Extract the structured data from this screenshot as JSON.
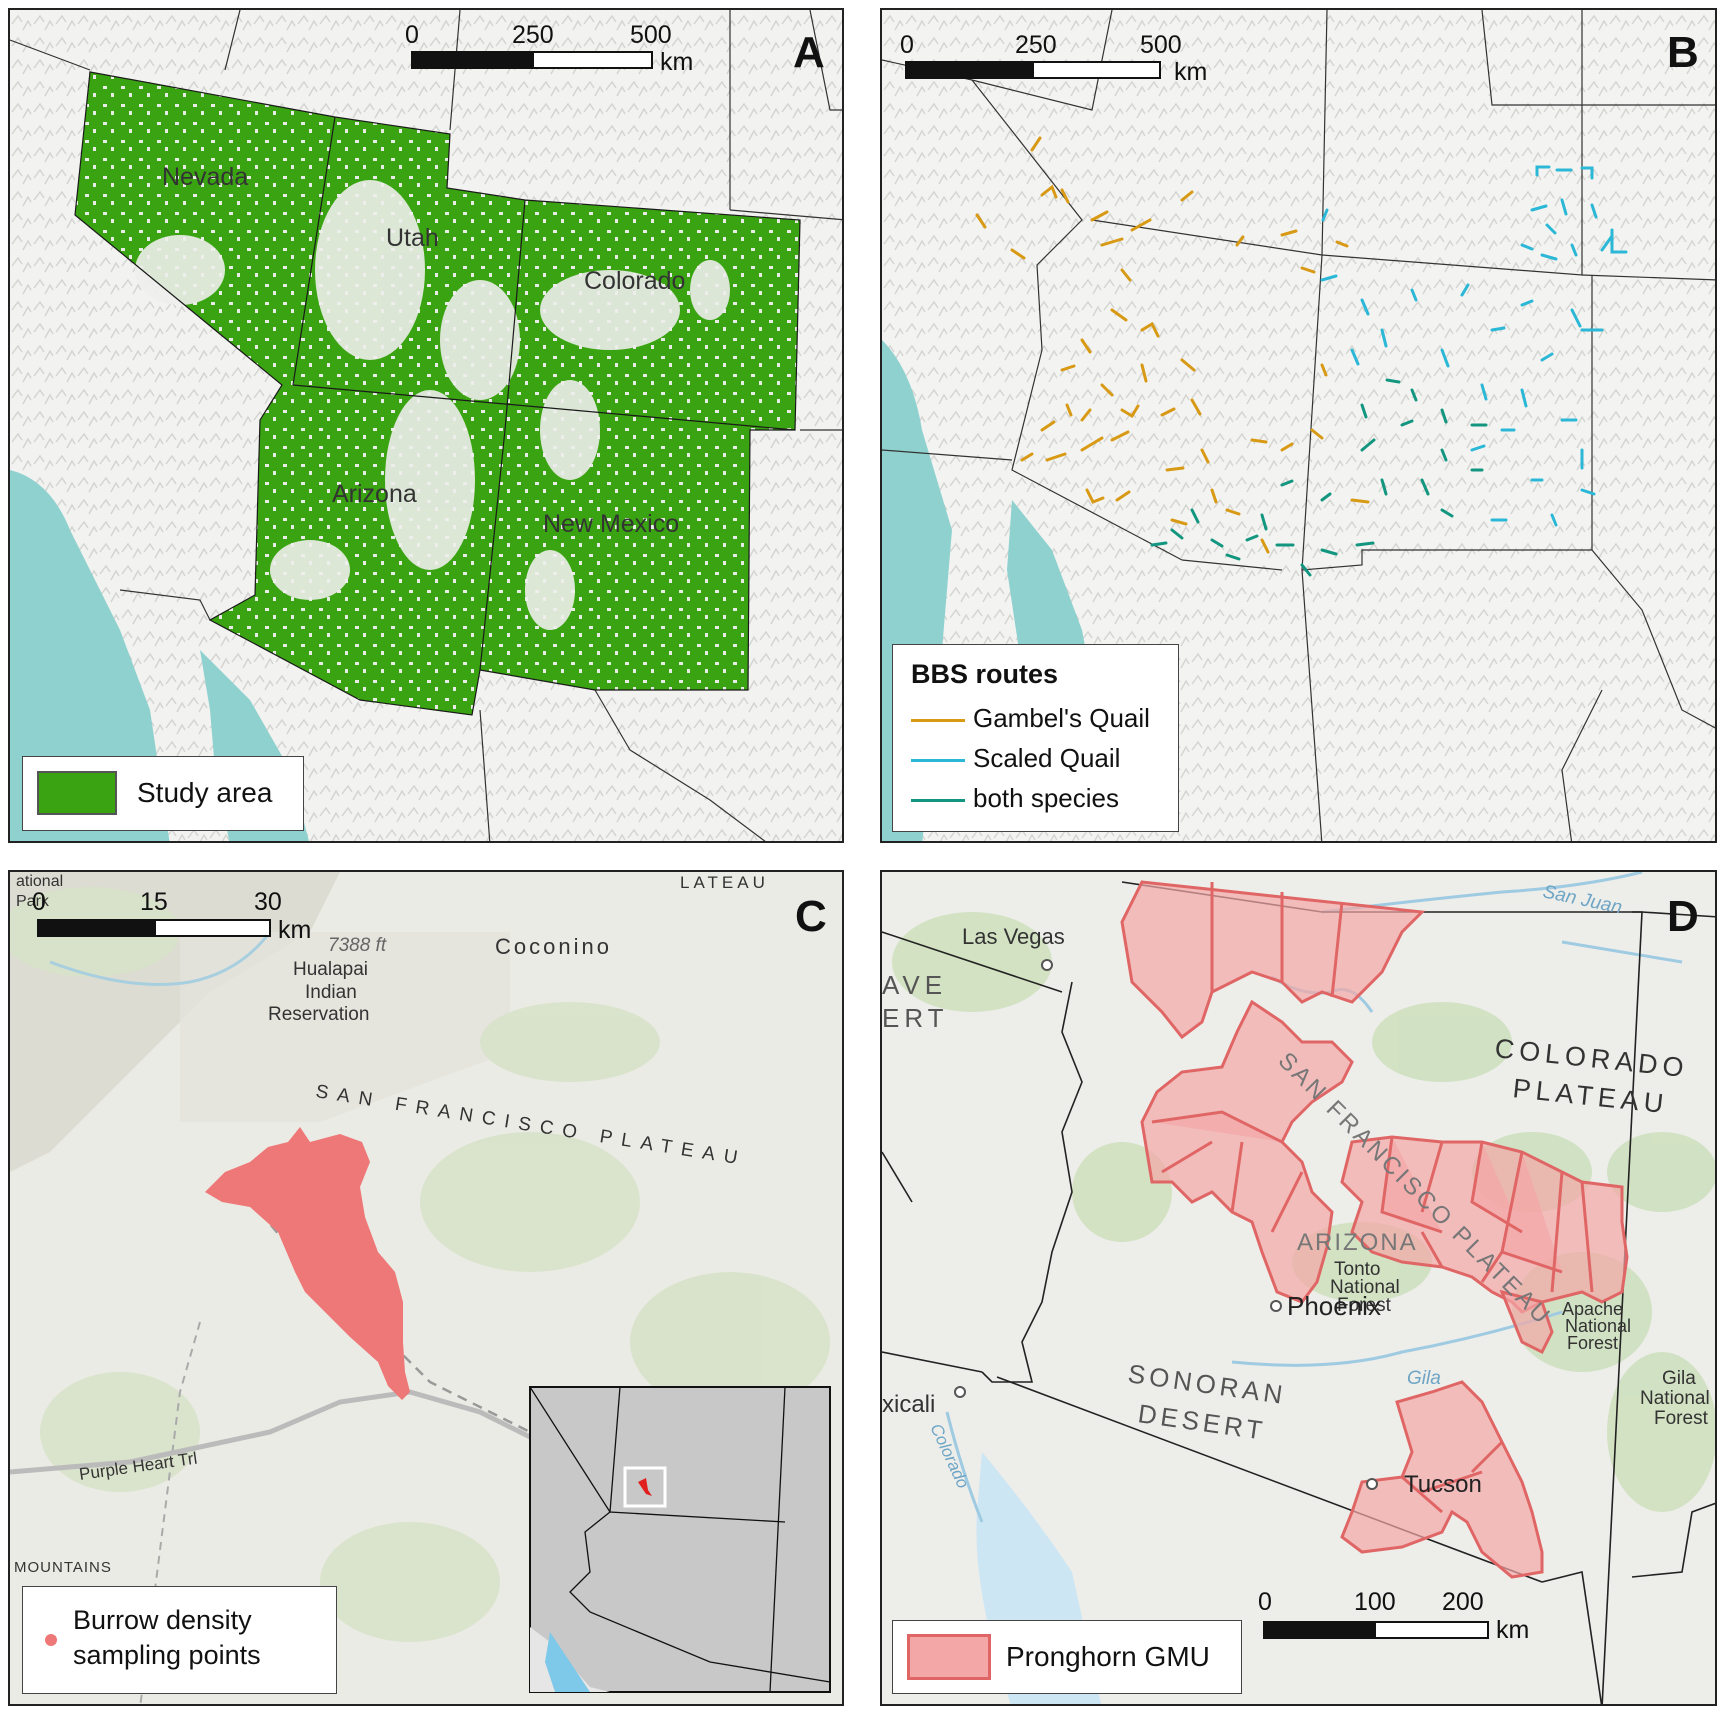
{
  "panels": {
    "a": {
      "label": "A",
      "states": [
        "Nevada",
        "Utah",
        "Colorado",
        "Arizona",
        "New Mexico"
      ],
      "scalebar": {
        "ticks": [
          "0",
          "250",
          "500"
        ],
        "unit": "km"
      },
      "legend": {
        "items": [
          {
            "label": "Study area",
            "color": "#3aa312"
          }
        ]
      }
    },
    "b": {
      "label": "B",
      "scalebar": {
        "ticks": [
          "0",
          "250",
          "500"
        ],
        "unit": "km"
      },
      "legend": {
        "title": "BBS routes",
        "items": [
          {
            "label": "Gambel's Quail",
            "color": "#d89a14"
          },
          {
            "label": "Scaled Quail",
            "color": "#2bb7d6"
          },
          {
            "label": "both species",
            "color": "#13967f"
          }
        ]
      }
    },
    "c": {
      "label": "C",
      "place_labels": [
        "7388 ft",
        "Hualapai",
        "Indian",
        "Reservation",
        "Coconino",
        "SAN FRANCISCO PLATEAU",
        "Purple Heart Trl",
        "ational",
        "Park",
        "LATEAU",
        "MOUNTAINS"
      ],
      "scalebar": {
        "ticks": [
          "0",
          "15",
          "30"
        ],
        "unit": "km"
      },
      "legend": {
        "items": [
          {
            "label_line1": "Burrow density",
            "label_line2": "sampling points",
            "color": "#ee7777"
          }
        ]
      }
    },
    "d": {
      "label": "D",
      "place_labels": [
        "Las Vegas",
        "AVE",
        "ERT",
        "San Juan",
        "COLORADO",
        "PLATEAU",
        "SAN FRANCISCO PLATEAU",
        "ARIZONA",
        "Tonto",
        "National",
        "Forest",
        "Apache",
        "National",
        "Forest",
        "Phoenix",
        "SONORAN",
        "DESERT",
        "Gila",
        "Gila",
        "National",
        "Forest",
        "xicali",
        "Colorado",
        "Tucson"
      ],
      "scalebar": {
        "ticks": [
          "0",
          "100",
          "200"
        ],
        "unit": "km"
      },
      "legend": {
        "items": [
          {
            "label": "Pronghorn GMU",
            "color": "#f4a7a7"
          }
        ]
      }
    }
  }
}
